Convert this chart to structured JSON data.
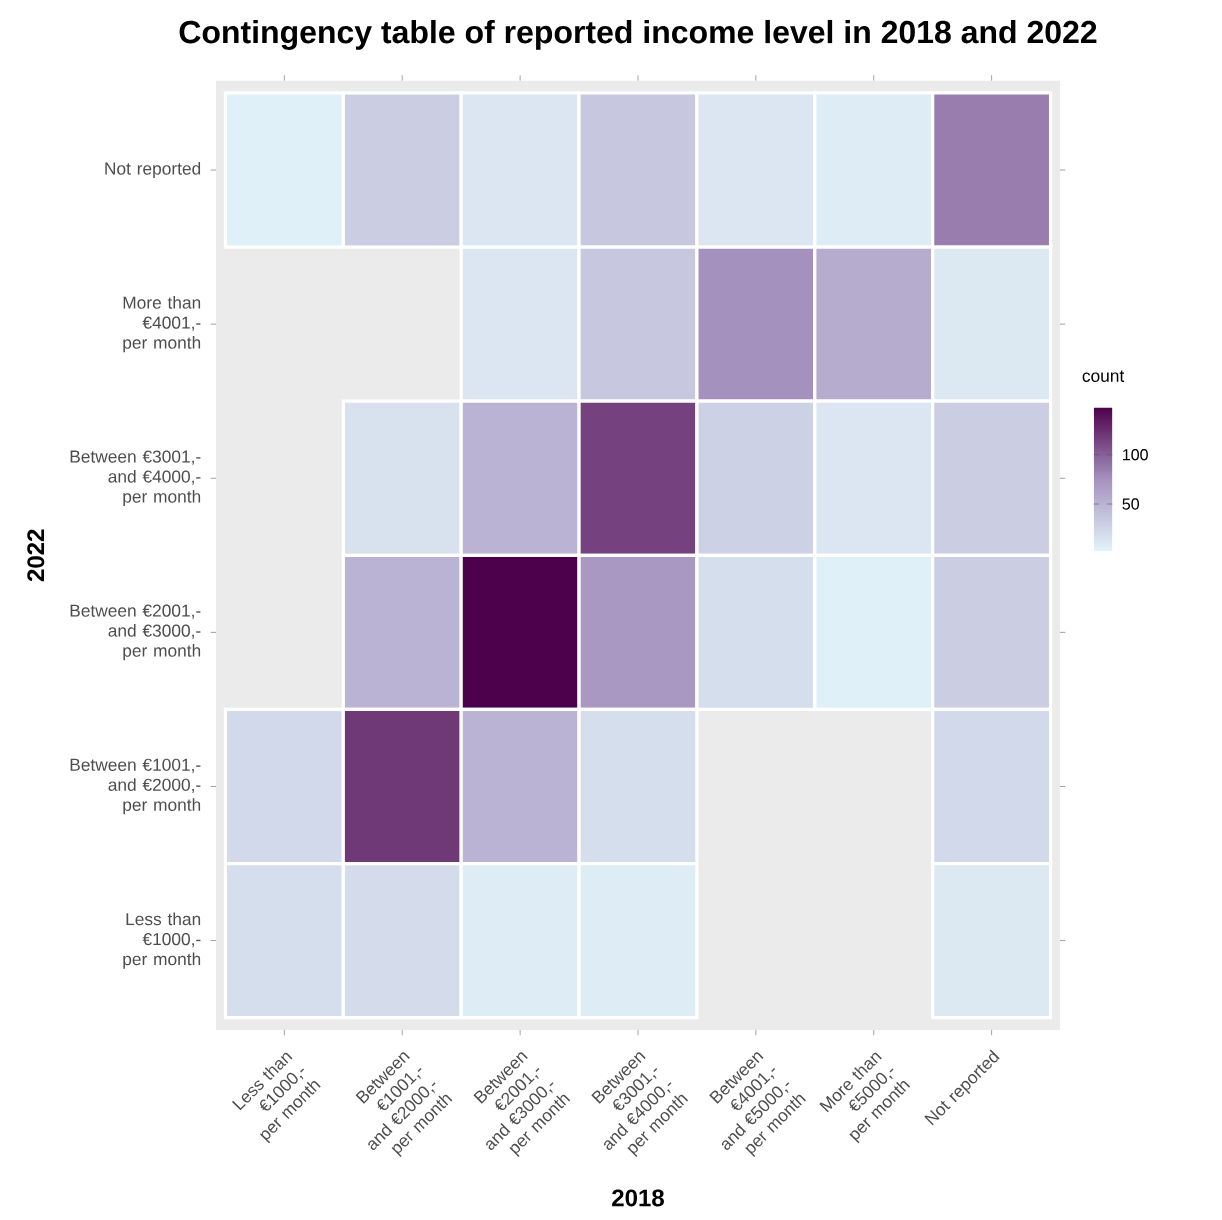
{
  "chart_data": {
    "type": "heatmap",
    "title": "Contingency table of reported income level in 2018 and 2022",
    "xlabel": "2018",
    "ylabel": "2022",
    "clabel": "count",
    "categories": [
      "Less than €1000,- per month",
      "Between €1001,- and €2000,- per month",
      "Between €2001,- and €3000,- per month",
      "Between €3001,- and €4000,- per month",
      "Between €4001,- and €5000,- per month",
      "More than €5000,- per month",
      "Not reported"
    ],
    "y_categories": [
      "Not reported",
      "More than €4001,- per month",
      "Between €3001,- and €4000,- per month",
      "Between €2001,- and €3000,- per month",
      "Between €1001,- and €2000,- per month",
      "Less than €1000,- per month"
    ],
    "cells": [
      [
        5,
        30,
        12,
        35,
        12,
        8,
        85
      ],
      [
        null,
        null,
        12,
        35,
        75,
        55,
        10
      ],
      [
        null,
        15,
        50,
        115,
        28,
        12,
        30
      ],
      [
        null,
        50,
        148,
        70,
        18,
        5,
        30
      ],
      [
        22,
        120,
        50,
        18,
        null,
        null,
        22
      ],
      [
        18,
        20,
        8,
        8,
        null,
        null,
        10
      ]
    ],
    "clim": [
      2,
      148
    ],
    "cticks": [
      50,
      100
    ]
  }
}
